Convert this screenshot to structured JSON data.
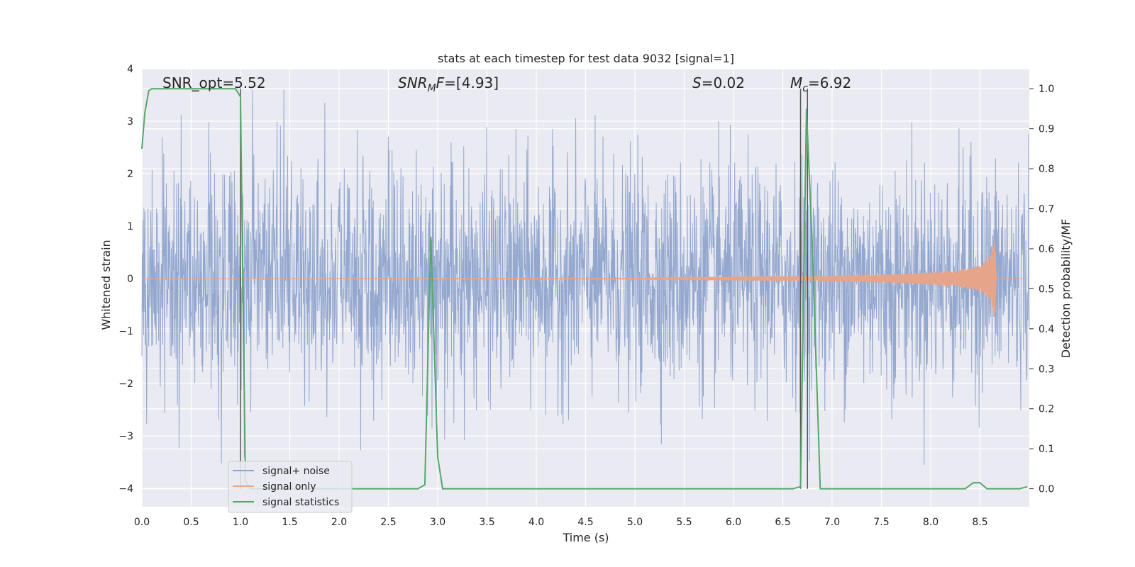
{
  "chart_data": {
    "type": "line",
    "title": "stats at each timestep for test data 9032 [signal=1]",
    "xlabel": "Time (s)",
    "ylabel": "Whitened strain",
    "y2label": "Detection probability/MF",
    "xlim": [
      0.0,
      9.0
    ],
    "ylim": [
      -4.35,
      4.0
    ],
    "y2lim": [
      -0.045,
      1.05
    ],
    "xticks": [
      0.0,
      0.5,
      1.0,
      1.5,
      2.0,
      2.5,
      3.0,
      3.5,
      4.0,
      4.5,
      5.0,
      5.5,
      6.0,
      6.5,
      7.0,
      7.5,
      8.0,
      8.5
    ],
    "xtick_labels": [
      "0.0",
      "0.5",
      "1.0",
      "1.5",
      "2.0",
      "2.5",
      "3.0",
      "3.5",
      "4.0",
      "4.5",
      "5.0",
      "5.5",
      "6.0",
      "6.5",
      "7.0",
      "7.5",
      "8.0",
      "8.5"
    ],
    "yticks": [
      4,
      3,
      2,
      1,
      0,
      -1,
      -2,
      -3,
      -4
    ],
    "ytick_labels": [
      "4",
      "3",
      "2",
      "1",
      "0",
      "−1",
      "−2",
      "−3",
      "−4"
    ],
    "y2ticks": [
      1.0,
      0.9,
      0.8,
      0.7,
      0.6,
      0.5,
      0.4,
      0.3,
      0.2,
      0.1,
      0.0
    ],
    "y2tick_labels": [
      "1.0",
      "0.9",
      "0.8",
      "0.7",
      "0.6",
      "0.5",
      "0.4",
      "0.3",
      "0.2",
      "0.1",
      "0.0"
    ],
    "series": [
      {
        "name": "signal+ noise",
        "color": "#8fa4cc",
        "description": "whitened strain noise, roughly within [-3.6, 3.6]",
        "envelope": {
          "x": [
            0.0,
            9.0
          ],
          "upper_typical": 2.2,
          "lower_typical": -2.2,
          "max": 3.6,
          "min": -4.0
        }
      },
      {
        "name": "signal only",
        "color": "#e6a58b",
        "description": "chirp signal growing in amplitude, peaking near t=8.65 s",
        "x": [
          0.0,
          4.0,
          5.0,
          6.0,
          7.0,
          7.5,
          8.0,
          8.3,
          8.5,
          8.6,
          8.65,
          8.67,
          9.0
        ],
        "amplitude": [
          0.0,
          0.005,
          0.02,
          0.04,
          0.06,
          0.08,
          0.12,
          0.17,
          0.25,
          0.4,
          0.85,
          0.0,
          0.0
        ]
      },
      {
        "name": "signal statistics",
        "color": "#55a868",
        "axis": "right",
        "x": [
          0.0,
          0.03,
          0.07,
          0.1,
          0.95,
          1.0,
          1.05,
          1.1,
          2.8,
          2.87,
          2.93,
          3.0,
          3.05,
          6.6,
          6.68,
          6.74,
          6.8,
          6.88,
          8.35,
          8.43,
          8.5,
          8.57,
          8.9,
          8.98
        ],
        "values": [
          0.85,
          0.94,
          0.995,
          1.0,
          1.0,
          0.98,
          0.02,
          0.0,
          0.0,
          0.01,
          0.63,
          0.08,
          0.0,
          0.0,
          0.005,
          0.95,
          0.6,
          0.0,
          0.0,
          0.015,
          0.015,
          0.0,
          0.0,
          0.005
        ]
      }
    ],
    "vertical_lines": [
      {
        "x": 1.0,
        "color": "#555555"
      },
      {
        "x": 6.68,
        "color": "#555555"
      },
      {
        "x": 6.75,
        "color": "#555555"
      }
    ],
    "annotations": {
      "snr_opt": "SNR_opt=5.52",
      "snr_mf_main": "SNR",
      "snr_mf_sub": "M",
      "snr_mf_tail": "F",
      "snr_mf_value": "=[4.93]",
      "s_symbol": "S",
      "s_value": "=0.02",
      "mc_main": "M",
      "mc_sub": "c",
      "mc_value": "=6.92"
    },
    "legend": {
      "placement": "lower-left",
      "entries": [
        "signal+ noise",
        "signal only",
        "signal statistics"
      ]
    },
    "grid": true
  }
}
